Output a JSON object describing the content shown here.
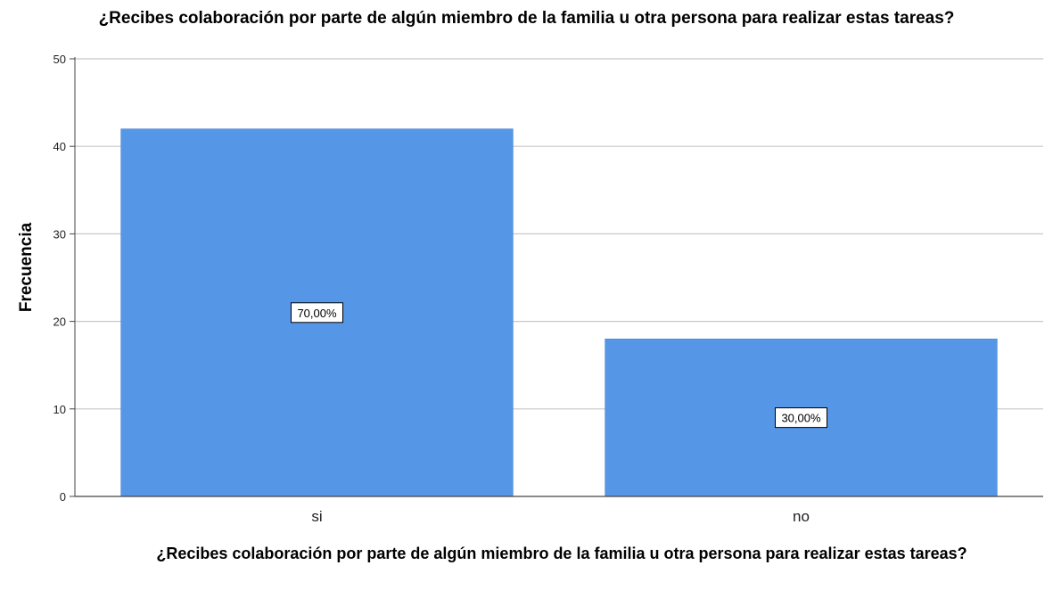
{
  "chart_data": {
    "type": "bar",
    "title": "¿Recibes colaboración por parte de algún miembro de la familia u otra persona para realizar estas tareas?",
    "xlabel": "¿Recibes colaboración por parte de algún miembro de la familia u otra persona para realizar estas tareas?",
    "ylabel": "Frecuencia",
    "categories": [
      "si",
      "no"
    ],
    "values": [
      42,
      18
    ],
    "data_labels": [
      "70,00%",
      "30,00%"
    ],
    "ylim": [
      0,
      50
    ],
    "yticks": [
      0,
      10,
      20,
      30,
      40,
      50
    ],
    "grid": true,
    "bar_color": "#5596e6"
  }
}
